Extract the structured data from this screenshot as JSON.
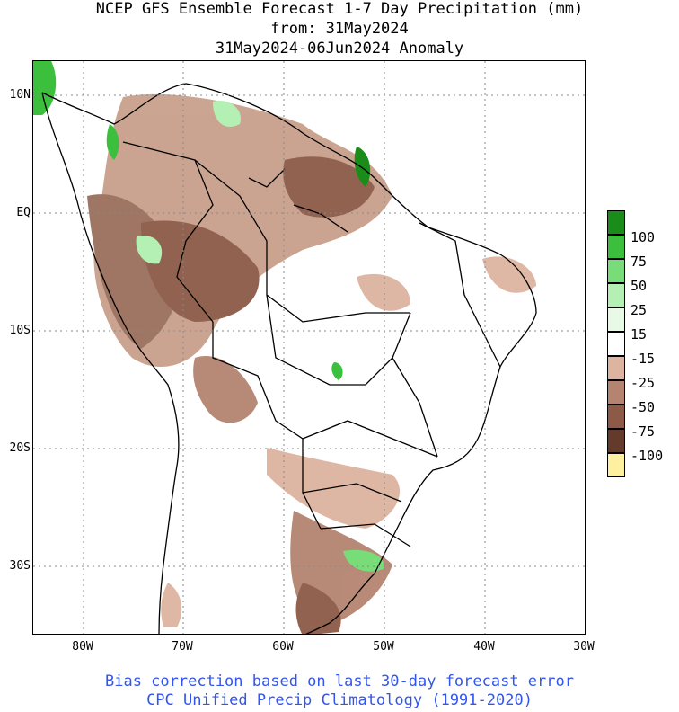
{
  "title": {
    "line1": "NCEP GFS Ensemble Forecast 1-7 Day Precipitation (mm)",
    "line2": "from: 31May2024",
    "line3": "31May2024-06Jun2024 Anomaly"
  },
  "footer": {
    "line1": "Bias correction based on last 30-day forecast error",
    "line2": "CPC Unified Precip Climatology (1991-2020)"
  },
  "axes": {
    "lat_labels": [
      "10N",
      "EQ",
      "10S",
      "20S",
      "30S"
    ],
    "lon_labels": [
      "80W",
      "70W",
      "60W",
      "50W",
      "40W",
      "30W"
    ]
  },
  "legend": {
    "labels": [
      "100",
      "75",
      "50",
      "25",
      "15",
      "-15",
      "-25",
      "-50",
      "-75",
      "-100"
    ],
    "colors": [
      "#1a8c1a",
      "#3cbf3c",
      "#78dc78",
      "#b4f0b4",
      "#e6fae6",
      "#ffffff",
      "#dcb4a0",
      "#b48470",
      "#8c5a46",
      "#643a2a",
      "#fff0a0"
    ]
  }
}
